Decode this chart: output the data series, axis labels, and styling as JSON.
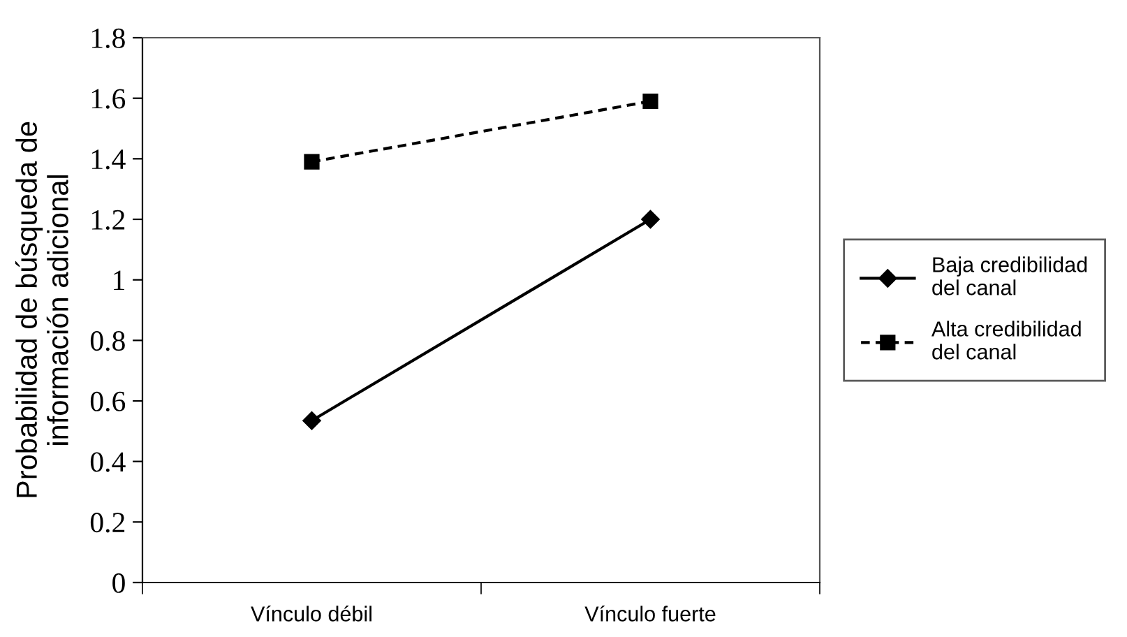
{
  "chart_data": {
    "type": "line",
    "ylabel": "Probabilidad de búsqueda de\ninformación adicional",
    "categories": [
      "Vínculo débil",
      "Vínculo fuerte"
    ],
    "series": [
      {
        "name": "Baja credibilidad del canal",
        "color": "#000000",
        "values": [
          0.535,
          1.2
        ],
        "marker": "diamond",
        "line_style": "solid"
      },
      {
        "name": "Alta credibilidad del canal",
        "color": "#000000",
        "values": [
          1.39,
          1.59
        ],
        "marker": "square",
        "line_style": "dashed"
      }
    ],
    "ylim": [
      0,
      1.8
    ],
    "yticks": [
      0,
      {
        "value": 0.2,
        "label": "0.2"
      },
      {
        "value": 0.4,
        "label": "0.4"
      },
      {
        "value": 0.6,
        "label": "0.6"
      },
      {
        "value": 0.8,
        "label": "0.8"
      },
      1,
      {
        "value": 1.2,
        "label": "1.2"
      },
      {
        "value": 1.4,
        "label": "1.4"
      },
      {
        "value": 1.6,
        "label": "1.6"
      },
      {
        "value": 1.8,
        "label": "1.8"
      }
    ],
    "grid": false,
    "legend": "right"
  }
}
